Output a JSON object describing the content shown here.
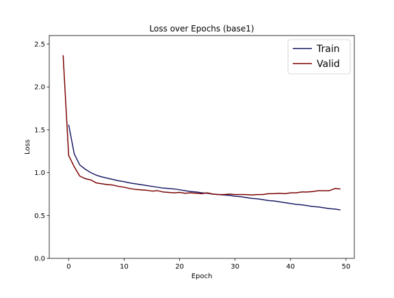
{
  "chart_data": {
    "type": "line",
    "title": "Loss over Epochs (base1)",
    "xlabel": "Epoch",
    "ylabel": "Loss",
    "xlim": [
      -3.5,
      51.5
    ],
    "ylim": [
      0.0,
      2.6
    ],
    "xticks": [
      0,
      10,
      20,
      30,
      40,
      50
    ],
    "yticks": [
      0.0,
      0.5,
      1.0,
      1.5,
      2.0,
      2.5
    ],
    "xtick_labels": [
      "0",
      "10",
      "20",
      "30",
      "40",
      "50"
    ],
    "ytick_labels": [
      "0.0",
      "0.5",
      "1.0",
      "1.5",
      "2.0",
      "2.5"
    ],
    "grid": false,
    "legend_position": "top-right",
    "series": [
      {
        "name": "Train",
        "color": "#1a1a66",
        "x": [
          0,
          1,
          2,
          3,
          4,
          5,
          6,
          7,
          8,
          9,
          10,
          11,
          12,
          13,
          14,
          15,
          16,
          17,
          18,
          19,
          20,
          21,
          22,
          23,
          24,
          25,
          26,
          27,
          28,
          29,
          30,
          31,
          32,
          33,
          34,
          35,
          36,
          37,
          38,
          39,
          40,
          41,
          42,
          43,
          44,
          45,
          46,
          47,
          48,
          49
        ],
        "values": [
          1.56,
          1.22,
          1.09,
          1.04,
          1.0,
          0.97,
          0.95,
          0.935,
          0.92,
          0.905,
          0.895,
          0.88,
          0.87,
          0.86,
          0.85,
          0.84,
          0.83,
          0.82,
          0.815,
          0.81,
          0.8,
          0.79,
          0.78,
          0.775,
          0.765,
          0.76,
          0.75,
          0.745,
          0.74,
          0.735,
          0.725,
          0.72,
          0.71,
          0.7,
          0.695,
          0.685,
          0.675,
          0.67,
          0.66,
          0.65,
          0.64,
          0.63,
          0.625,
          0.615,
          0.605,
          0.6,
          0.59,
          0.58,
          0.575,
          0.565
        ]
      },
      {
        "name": "Valid",
        "color": "#7a0000",
        "x": [
          -1,
          0,
          1,
          2,
          3,
          4,
          5,
          6,
          7,
          8,
          9,
          10,
          11,
          12,
          13,
          14,
          15,
          16,
          17,
          18,
          19,
          20,
          21,
          22,
          23,
          24,
          25,
          26,
          27,
          28,
          29,
          30,
          31,
          32,
          33,
          34,
          35,
          36,
          37,
          38,
          39,
          40,
          41,
          42,
          43,
          44,
          45,
          46,
          47,
          48,
          49
        ],
        "values": [
          2.37,
          1.2,
          1.07,
          0.96,
          0.93,
          0.915,
          0.88,
          0.87,
          0.86,
          0.855,
          0.84,
          0.83,
          0.815,
          0.805,
          0.8,
          0.795,
          0.785,
          0.79,
          0.775,
          0.77,
          0.765,
          0.77,
          0.76,
          0.765,
          0.76,
          0.755,
          0.765,
          0.75,
          0.745,
          0.745,
          0.75,
          0.745,
          0.745,
          0.745,
          0.74,
          0.745,
          0.745,
          0.755,
          0.755,
          0.76,
          0.755,
          0.765,
          0.765,
          0.775,
          0.775,
          0.78,
          0.79,
          0.79,
          0.79,
          0.815,
          0.81
        ]
      }
    ]
  }
}
